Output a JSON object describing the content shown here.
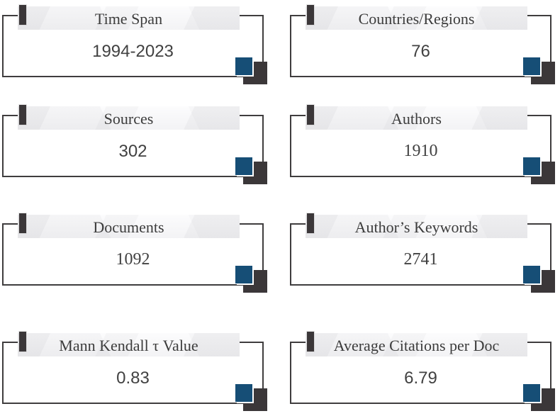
{
  "figure": {
    "description": "Bibliometric main information summary cards",
    "colors": {
      "frame_border": "#3f3d3e",
      "accent_dark": "#3b3739",
      "accent_blue": "#164e76",
      "band_background": "#f3f3f5",
      "text": "#3c3c3c"
    },
    "cards": [
      {
        "title": "Time Span",
        "value": "1994-2023"
      },
      {
        "title": "Countries/Regions",
        "value": "76"
      },
      {
        "title": "Sources",
        "value": "302"
      },
      {
        "title": "Authors",
        "value": "1910"
      },
      {
        "title": "Documents",
        "value": "1092"
      },
      {
        "title": "Author’s Keywords",
        "value": "2741"
      },
      {
        "title": "Mann Kendall τ Value",
        "value": "0.83"
      },
      {
        "title": "Average Citations per Doc",
        "value": "6.79"
      }
    ]
  }
}
